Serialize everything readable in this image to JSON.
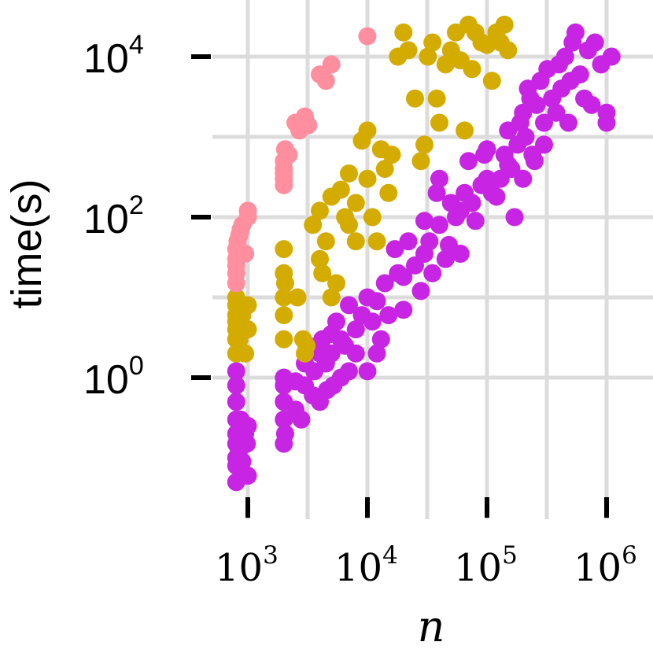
{
  "chart_data": {
    "type": "scatter",
    "title": "",
    "xlabel": "n",
    "ylabel": "time(s)",
    "xscale": "log",
    "yscale": "log",
    "xlim": [
      550,
      1600000
    ],
    "ylim": [
      0.03,
      50000
    ],
    "grid": true,
    "legend": "none",
    "xticks": [
      {
        "value": 1000,
        "base": "10",
        "exp": "3"
      },
      {
        "value": 10000,
        "base": "10",
        "exp": "4"
      },
      {
        "value": 100000,
        "base": "10",
        "exp": "5"
      },
      {
        "value": 1000000,
        "base": "10",
        "exp": "6"
      }
    ],
    "yticks": [
      {
        "value": 1,
        "base": "10",
        "exp": "0"
      },
      {
        "value": 100,
        "base": "10",
        "exp": "2"
      },
      {
        "value": 10000,
        "base": "10",
        "exp": "4"
      }
    ],
    "series": [
      {
        "color": "#c724e3",
        "x": [
          800,
          800,
          800,
          800,
          800,
          800,
          800,
          800,
          800,
          840,
          870,
          900,
          950,
          980,
          1000,
          1000,
          2000,
          2000,
          2000,
          2000,
          2000,
          2050,
          2500,
          2500,
          2800,
          3000,
          3000,
          3200,
          3500,
          3600,
          4000,
          4000,
          4200,
          4500,
          4600,
          5000,
          5000,
          5200,
          5500,
          6000,
          6000,
          6500,
          7000,
          7000,
          8000,
          8000,
          9000,
          10000,
          10000,
          11000,
          12000,
          12000,
          13000,
          14000,
          15000,
          17000,
          18000,
          20000,
          20000,
          22000,
          25000,
          28000,
          30000,
          30000,
          33000,
          35000,
          38000,
          40000,
          40000,
          45000,
          48000,
          50000,
          55000,
          60000,
          60000,
          65000,
          70000,
          75000,
          80000,
          90000,
          95000,
          100000,
          100000,
          110000,
          120000,
          130000,
          140000,
          150000,
          150000,
          160000,
          170000,
          180000,
          190000,
          200000,
          200000,
          210000,
          220000,
          230000,
          240000,
          250000,
          260000,
          280000,
          300000,
          300000,
          320000,
          350000,
          380000,
          400000,
          420000,
          450000,
          480000,
          500000,
          520000,
          550000,
          600000,
          650000,
          700000,
          750000,
          800000,
          900000,
          1000000,
          1000000,
          1100000
        ],
        "y": [
          0.05,
          0.08,
          0.1,
          0.15,
          0.2,
          0.3,
          0.5,
          0.8,
          1.2,
          0.12,
          0.3,
          0.09,
          0.2,
          0.15,
          0.25,
          0.06,
          0.15,
          0.3,
          0.5,
          0.8,
          1,
          0.2,
          0.4,
          0.9,
          0.3,
          1.5,
          0.8,
          2.5,
          0.6,
          1.2,
          0.5,
          2,
          3,
          1.5,
          0.7,
          3.5,
          2,
          0.8,
          5,
          1,
          3,
          2.5,
          8,
          1.2,
          4,
          2,
          6,
          10,
          1.2,
          5,
          2,
          9,
          3,
          15,
          6,
          40,
          20,
          18,
          7,
          50,
          25,
          12,
          90,
          35,
          50,
          20,
          200,
          80,
          300,
          30,
          45,
          150,
          100,
          120,
          35,
          200,
          500,
          150,
          90,
          250,
          600,
          700,
          300,
          200,
          180,
          300,
          600,
          1200,
          450,
          400,
          100,
          800,
          1500,
          2000,
          300,
          1000,
          4000,
          3000,
          600,
          500,
          2500,
          5000,
          1500,
          800,
          7000,
          3000,
          2000,
          8000,
          4000,
          10000,
          1500,
          5000,
          15000,
          20000,
          6000,
          3000,
          12000,
          2500,
          15000,
          8000,
          2000,
          1500,
          10000
        ],
        "label": ""
      },
      {
        "color": "#d4ac00",
        "x": [
          800,
          800,
          800,
          800,
          800,
          800,
          800,
          850,
          870,
          900,
          950,
          1000,
          1000,
          2000,
          2000,
          2000,
          2000,
          2000,
          2050,
          2600,
          2900,
          3000,
          3100,
          3500,
          4000,
          4000,
          4200,
          4500,
          5000,
          5000,
          5500,
          6000,
          6500,
          7000,
          7000,
          8000,
          8000,
          9000,
          10000,
          10000,
          11000,
          12000,
          13000,
          14000,
          15000,
          16000,
          18000,
          20000,
          22000,
          25000,
          28000,
          30000,
          32000,
          35000,
          38000,
          40000,
          45000,
          50000,
          55000,
          60000,
          65000,
          70000,
          75000,
          80000,
          90000,
          100000,
          110000,
          120000,
          130000,
          140000,
          150000
        ],
        "y": [
          2,
          3,
          4,
          5,
          6,
          8,
          10,
          3,
          5,
          6,
          2,
          8,
          4,
          3,
          6,
          10,
          20,
          40,
          15,
          10,
          3,
          2,
          2.5,
          80,
          120,
          30,
          20,
          50,
          180,
          10,
          15,
          220,
          100,
          350,
          80,
          150,
          50,
          900,
          1200,
          300,
          100,
          50,
          700,
          400,
          200,
          600,
          10000,
          20000,
          12000,
          3000,
          500,
          800,
          10000,
          15000,
          3000,
          1500,
          8000,
          12000,
          20000,
          9000,
          1200,
          25000,
          7000,
          20000,
          15000,
          14000,
          5000,
          20000,
          15000,
          25000,
          12000
        ],
        "label": ""
      },
      {
        "color": "#ff8f9f",
        "x": [
          800,
          800,
          800,
          800,
          800,
          820,
          850,
          870,
          900,
          950,
          1000,
          1000,
          2000,
          2000,
          2000,
          2000,
          2000,
          2050,
          2200,
          2500,
          2700,
          3000,
          3200,
          4000,
          4500,
          5000,
          10000
        ],
        "y": [
          15,
          20,
          25,
          30,
          40,
          50,
          60,
          70,
          80,
          35,
          100,
          120,
          250,
          300,
          350,
          400,
          500,
          700,
          600,
          1500,
          1200,
          1800,
          1400,
          6000,
          5000,
          8000,
          18000
        ],
        "label": ""
      }
    ]
  }
}
